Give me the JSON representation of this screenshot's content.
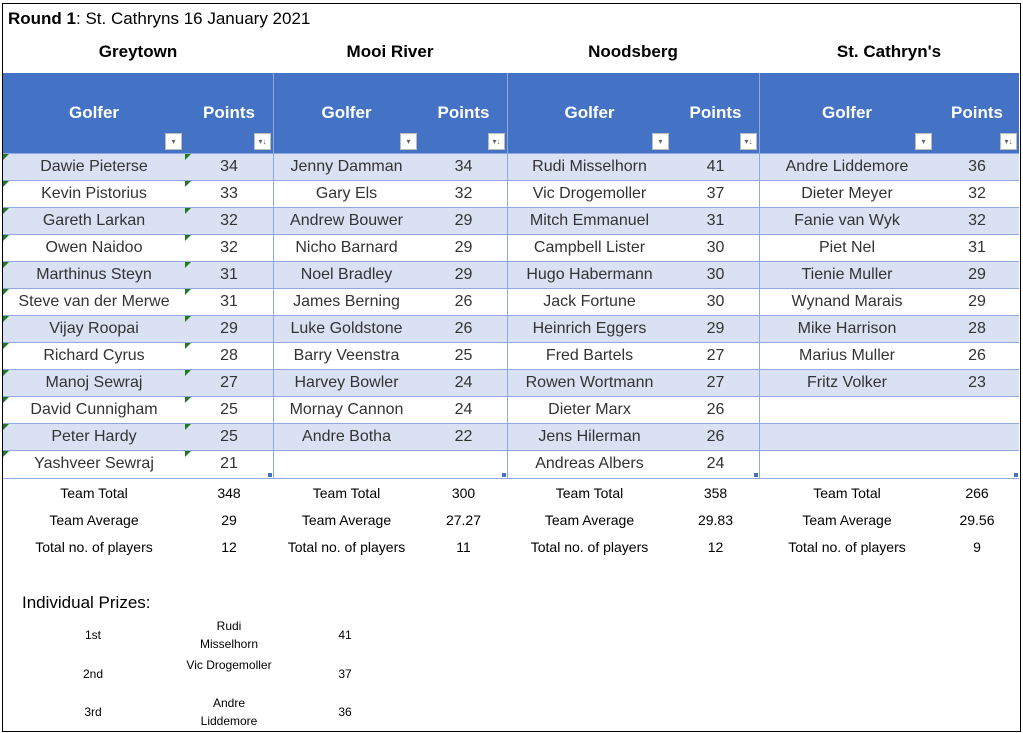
{
  "title": {
    "bold": "Round 1",
    "rest": ": St. Cathryns 16 January 2021"
  },
  "header": {
    "golfer": "Golfer",
    "points": "Points"
  },
  "colors": {
    "header_bg": "#4472C4",
    "band": "#D9E1F2",
    "border": "#8EA9DB"
  },
  "summary_labels": {
    "total": "Team Total",
    "average": "Team Average",
    "players": "Total no. of players"
  },
  "teams": [
    {
      "name": "Greytown",
      "total": "348",
      "average": "29",
      "players": "12",
      "rows": [
        [
          "Dawie Pieterse",
          "34"
        ],
        [
          "Kevin Pistorius",
          "33"
        ],
        [
          "Gareth Larkan",
          "32"
        ],
        [
          "Owen Naidoo",
          "32"
        ],
        [
          "Marthinus Steyn",
          "31"
        ],
        [
          "Steve van der Merwe",
          "31"
        ],
        [
          "Vijay Roopai",
          "29"
        ],
        [
          "Richard Cyrus",
          "28"
        ],
        [
          "Manoj Sewraj",
          "27"
        ],
        [
          "David Cunnigham",
          "25"
        ],
        [
          "Peter Hardy",
          "25"
        ],
        [
          "Yashveer Sewraj",
          "21"
        ]
      ]
    },
    {
      "name": "Mooi River",
      "total": "300",
      "average": "27.27",
      "players": "11",
      "rows": [
        [
          "Jenny Damman",
          "34"
        ],
        [
          "Gary Els",
          "32"
        ],
        [
          "Andrew Bouwer",
          "29"
        ],
        [
          "Nicho Barnard",
          "29"
        ],
        [
          "Noel Bradley",
          "29"
        ],
        [
          "James Berning",
          "26"
        ],
        [
          "Luke Goldstone",
          "26"
        ],
        [
          "Barry Veenstra",
          "25"
        ],
        [
          "Harvey Bowler",
          "24"
        ],
        [
          "Mornay Cannon",
          "24"
        ],
        [
          "Andre Botha",
          "22"
        ]
      ]
    },
    {
      "name": "Noodsberg",
      "total": "358",
      "average": "29.83",
      "players": "12",
      "rows": [
        [
          "Rudi Misselhorn",
          "41"
        ],
        [
          "Vic Drogemoller",
          "37"
        ],
        [
          "Mitch Emmanuel",
          "31"
        ],
        [
          "Campbell Lister",
          "30"
        ],
        [
          "Hugo Habermann",
          "30"
        ],
        [
          "Jack Fortune",
          "30"
        ],
        [
          "Heinrich Eggers",
          "29"
        ],
        [
          "Fred Bartels",
          "27"
        ],
        [
          "Rowen Wortmann",
          "27"
        ],
        [
          "Dieter Marx",
          "26"
        ],
        [
          "Jens Hilerman",
          "26"
        ],
        [
          "Andreas Albers",
          "24"
        ]
      ]
    },
    {
      "name": "St. Cathryn's",
      "total": "266",
      "average": "29.56",
      "players": "9",
      "rows": [
        [
          "Andre Liddemore",
          "36"
        ],
        [
          "Dieter Meyer",
          "32"
        ],
        [
          "Fanie van Wyk",
          "32"
        ],
        [
          "Piet Nel",
          "31"
        ],
        [
          "Tienie Muller",
          "29"
        ],
        [
          "Wynand Marais",
          "29"
        ],
        [
          "Mike Harrison",
          "28"
        ],
        [
          "Marius Muller",
          "26"
        ],
        [
          "Fritz Volker",
          "23"
        ]
      ]
    }
  ],
  "prizes": {
    "title": "Individual Prizes:",
    "items": [
      {
        "rank": "1st",
        "name": "Rudi Misselhorn",
        "points": "41"
      },
      {
        "rank": "2nd",
        "name": "Vic Drogemoller",
        "points": "37"
      },
      {
        "rank": "3rd",
        "name": "Andre Liddemore",
        "points": "36"
      }
    ]
  }
}
